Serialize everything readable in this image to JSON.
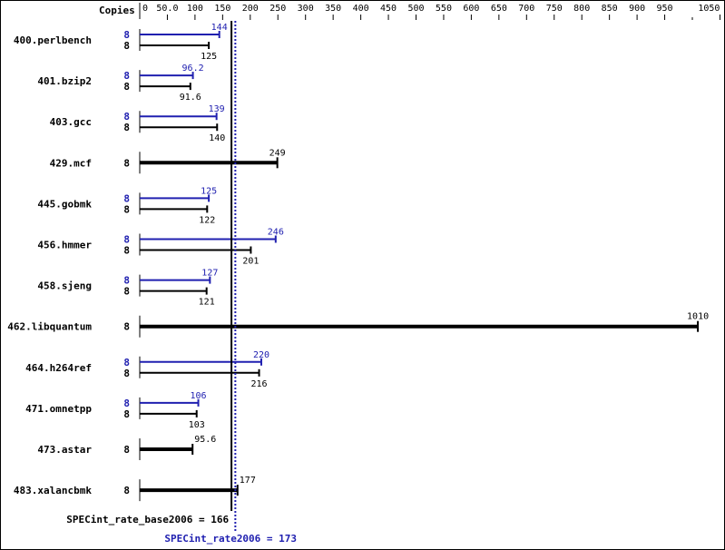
{
  "chart_data": {
    "type": "bar",
    "orientation": "horizontal",
    "axis_label": "Copies",
    "xlim": [
      0,
      1050
    ],
    "ticks": [
      "0",
      "50.0",
      "100",
      "150",
      "200",
      "250",
      "300",
      "350",
      "400",
      "450",
      "500",
      "550",
      "600",
      "650",
      "700",
      "750",
      "800",
      "850",
      "900",
      "950",
      "1050"
    ],
    "tick_values": [
      0,
      50,
      100,
      150,
      200,
      250,
      300,
      350,
      400,
      450,
      500,
      550,
      600,
      650,
      700,
      750,
      800,
      850,
      900,
      950,
      1050
    ],
    "minor_tick_values": [
      1000
    ],
    "colors": {
      "base": "#000000",
      "peak": "#2020b0"
    },
    "benchmarks": [
      {
        "name": "400.perlbench",
        "peak_copies": "8",
        "peak": 144,
        "peak_label": "144",
        "base_copies": "8",
        "base": 125,
        "base_label": "125"
      },
      {
        "name": "401.bzip2",
        "peak_copies": "8",
        "peak": 96.2,
        "peak_label": "96.2",
        "base_copies": "8",
        "base": 91.6,
        "base_label": "91.6"
      },
      {
        "name": "403.gcc",
        "peak_copies": "8",
        "peak": 139,
        "peak_label": "139",
        "base_copies": "8",
        "base": 140,
        "base_label": "140"
      },
      {
        "name": "429.mcf",
        "base_copies": "8",
        "base": 249,
        "base_label": "249"
      },
      {
        "name": "445.gobmk",
        "peak_copies": "8",
        "peak": 125,
        "peak_label": "125",
        "base_copies": "8",
        "base": 122,
        "base_label": "122"
      },
      {
        "name": "456.hmmer",
        "peak_copies": "8",
        "peak": 246,
        "peak_label": "246",
        "base_copies": "8",
        "base": 201,
        "base_label": "201"
      },
      {
        "name": "458.sjeng",
        "peak_copies": "8",
        "peak": 127,
        "peak_label": "127",
        "base_copies": "8",
        "base": 121,
        "base_label": "121"
      },
      {
        "name": "462.libquantum",
        "base_copies": "8",
        "base": 1010,
        "base_label": "1010"
      },
      {
        "name": "464.h264ref",
        "peak_copies": "8",
        "peak": 220,
        "peak_label": "220",
        "base_copies": "8",
        "base": 216,
        "base_label": "216"
      },
      {
        "name": "471.omnetpp",
        "peak_copies": "8",
        "peak": 106,
        "peak_label": "106",
        "base_copies": "8",
        "base": 103,
        "base_label": "103"
      },
      {
        "name": "473.astar",
        "base_copies": "8",
        "base": 95.6,
        "base_label": "95.6"
      },
      {
        "name": "483.xalancbmk",
        "base_copies": "8",
        "base": 177,
        "base_label": "177"
      }
    ],
    "summary": {
      "base_value": 166,
      "base_label": "SPECint_rate_base2006 = 166",
      "peak_value": 173,
      "peak_label": "SPECint_rate2006 = 173"
    }
  }
}
